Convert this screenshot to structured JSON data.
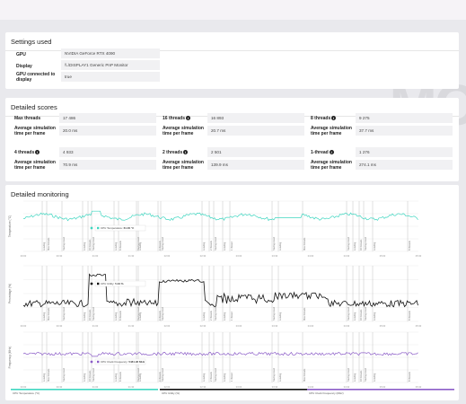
{
  "settings": {
    "title": "Settings used",
    "rows": [
      {
        "label": "GPU",
        "value": "NVIDIA GeForce RTX 4090"
      },
      {
        "label": "Display",
        "value": "\\\\.\\DISPLAY1 Generic PnP Monitor"
      },
      {
        "label": "GPU connected to display",
        "value": "true"
      }
    ]
  },
  "scores": {
    "title": "Detailed scores",
    "time_label": "Average simulation time per frame",
    "groups": [
      {
        "label": "Max threads",
        "info": false,
        "score": "17 486",
        "time": "20.0 ms"
      },
      {
        "label": "16 threads",
        "info": true,
        "score": "16 893",
        "time": "20.7 ms"
      },
      {
        "label": "8 threads",
        "info": true,
        "score": "9 275",
        "time": "37.7 ms"
      },
      {
        "label": "4 threads",
        "info": true,
        "score": "4 933",
        "time": "70.9 ms"
      },
      {
        "label": "2 threads",
        "info": true,
        "score": "2 501",
        "time": "139.9 ms"
      },
      {
        "label": "1-thread",
        "info": true,
        "score": "1 276",
        "time": "274.1 ms"
      }
    ]
  },
  "monitoring": {
    "title": "Detailed monitoring",
    "charts": [
      {
        "ylabel": "Temperature (°C)",
        "tooltip_label": "CPU Temperature",
        "tooltip_value": "61.00 °C",
        "color": "#3fd6c0"
      },
      {
        "ylabel": "Percentage (%)",
        "tooltip_label": "CPU Utility",
        "tooltip_value": "5.33 %",
        "color": "#111111"
      },
      {
        "ylabel": "Frequency (MHz)",
        "tooltip_label": "CPU Clock Frequency",
        "tooltip_value": "5481.96 MHz",
        "color": "#8b5cc7"
      }
    ],
    "phase_labels": [
      "Loading",
      "Max threads",
      "Saving result",
      "Loading",
      "16 threads",
      "Saving result",
      "Loading",
      "8 threads",
      "Saving result",
      "Loading",
      "4 threads",
      "Saving result",
      "Loading",
      "2 threads",
      "Saving result",
      "Loading",
      "1 thread",
      "Saving result"
    ],
    "time_ticks": [
      "00:00",
      "00:30",
      "01:00",
      "01:30",
      "02:00",
      "02:30",
      "03:00",
      "03:30",
      "04:00",
      "04:30",
      "05:00",
      "05:30"
    ],
    "legend": [
      {
        "label": "CPU Temperature (°C)",
        "color": "#3fd6c0"
      },
      {
        "label": "CPU Utility (%)",
        "color": "#111111"
      },
      {
        "label": "CPU Clock Frequency (MHz)",
        "color": "#8b5cc7"
      }
    ]
  }
}
